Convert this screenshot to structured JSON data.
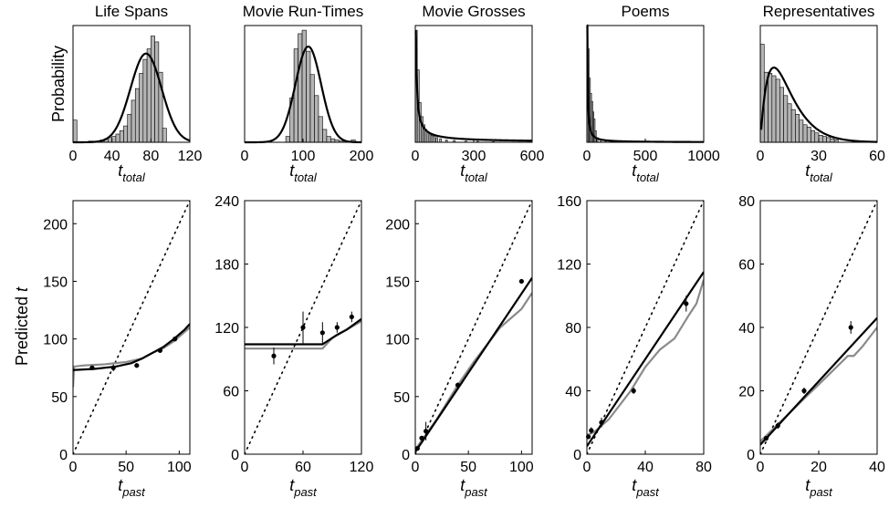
{
  "chart_data": [
    {
      "type": "bar",
      "title": "Life Spans",
      "xlabel": "t",
      "xlabel_sub": "total",
      "ylabel": "Probability",
      "xlim": [
        0,
        120
      ],
      "xticks": [
        0,
        40,
        80,
        120
      ],
      "bin_width": 4,
      "bins_x": [
        2,
        18,
        22,
        26,
        30,
        34,
        38,
        42,
        46,
        50,
        54,
        58,
        62,
        66,
        70,
        74,
        78,
        82,
        86,
        90,
        94
      ],
      "bins_p": [
        0.19,
        0.01,
        0.01,
        0.01,
        0.02,
        0.03,
        0.04,
        0.05,
        0.07,
        0.1,
        0.14,
        0.24,
        0.36,
        0.46,
        0.59,
        0.71,
        0.8,
        0.91,
        0.86,
        0.6,
        0.12
      ],
      "curve": {
        "kind": "normal",
        "mu": 75,
        "sigma": 16,
        "peak": 0.76
      }
    },
    {
      "type": "bar",
      "title": "Movie Run-Times",
      "xlabel": "t",
      "xlabel_sub": "total",
      "xlim": [
        0,
        200
      ],
      "xticks": [
        0,
        100,
        200
      ],
      "bin_width": 7,
      "bins_x": [
        74,
        81,
        88,
        95,
        102,
        109,
        116,
        123,
        130,
        137,
        144,
        151,
        158,
        165,
        172,
        186
      ],
      "bins_p": [
        0.05,
        0.38,
        0.8,
        0.93,
        0.96,
        0.78,
        0.58,
        0.4,
        0.22,
        0.11,
        0.05,
        0.03,
        0.02,
        0.01,
        0.01,
        0.02
      ],
      "curve": {
        "kind": "normal",
        "mu": 109,
        "sigma": 22,
        "peak": 0.82
      }
    },
    {
      "type": "bar",
      "title": "Movie Grosses",
      "xlabel": "t",
      "xlabel_sub": "total",
      "xlim": [
        0,
        600
      ],
      "xticks": [
        0,
        300,
        600
      ],
      "bin_width": 10,
      "bins_x": [
        5,
        15,
        25,
        35,
        45,
        55,
        65,
        75,
        85,
        95,
        110,
        130,
        160,
        200,
        260,
        320,
        400
      ],
      "bins_p": [
        0.96,
        0.62,
        0.34,
        0.22,
        0.15,
        0.11,
        0.09,
        0.07,
        0.06,
        0.05,
        0.04,
        0.03,
        0.02,
        0.015,
        0.01,
        0.008,
        0.005
      ],
      "curve": {
        "kind": "power",
        "gamma": 0.85,
        "peak": 0.95
      }
    },
    {
      "type": "bar",
      "title": "Poems",
      "xlabel": "t",
      "xlabel_sub": "total",
      "xlim": [
        0,
        1000
      ],
      "xticks": [
        0,
        500,
        1000
      ],
      "bin_width": 10,
      "bins_x": [
        5,
        15,
        25,
        35,
        45,
        55,
        65,
        75,
        90,
        120,
        160,
        220
      ],
      "bins_p": [
        0.99,
        0.8,
        0.55,
        0.42,
        0.35,
        0.26,
        0.2,
        0.1,
        0.04,
        0.02,
        0.01,
        0.005
      ],
      "curve": {
        "kind": "power",
        "gamma": 1.1,
        "peak": 1.0
      }
    },
    {
      "type": "bar",
      "title": "Representatives",
      "xlabel": "t",
      "xlabel_sub": "total",
      "xlim": [
        0,
        60
      ],
      "xticks": [
        0,
        30,
        60
      ],
      "bin_width": 2,
      "bins_x": [
        1,
        3,
        5,
        7,
        9,
        11,
        13,
        15,
        17,
        19,
        21,
        23,
        25,
        27,
        29,
        31,
        33,
        35,
        37,
        39
      ],
      "bins_p": [
        0.84,
        0.6,
        0.59,
        0.57,
        0.54,
        0.47,
        0.4,
        0.33,
        0.28,
        0.24,
        0.19,
        0.15,
        0.13,
        0.1,
        0.08,
        0.06,
        0.05,
        0.04,
        0.03,
        0.02
      ],
      "curve": {
        "kind": "erlang",
        "beta": 7,
        "peak": 0.64
      }
    },
    {
      "type": "line",
      "title": "",
      "xlabel": "t",
      "xlabel_sub": "past",
      "ylabel": "Predicted t",
      "xlim": [
        0,
        110
      ],
      "ylim": [
        0,
        220
      ],
      "xticks": [
        0,
        50,
        100
      ],
      "yticks": [
        0,
        50,
        100,
        150,
        200
      ],
      "series": [
        {
          "name": "",
          "style": "black",
          "x": [
            0,
            20,
            40,
            55,
            65,
            75,
            85,
            95,
            105,
            110
          ],
          "y": [
            73,
            74,
            76,
            79,
            83,
            88,
            93,
            100,
            108,
            113
          ]
        },
        {
          "name": "",
          "style": "gray",
          "x": [
            0,
            1,
            10,
            30,
            50,
            65,
            75,
            85,
            95,
            105,
            110
          ],
          "y": [
            58,
            76,
            77,
            78,
            80,
            83,
            88,
            92,
            98,
            106,
            110
          ]
        },
        {
          "name": "",
          "style": "dotted",
          "x": [
            0,
            110
          ],
          "y": [
            0,
            220
          ]
        }
      ],
      "points": {
        "x": [
          18,
          38,
          60,
          82,
          96
        ],
        "y": [
          75,
          75,
          77,
          90,
          100
        ],
        "err": [
          0,
          3,
          2,
          2,
          2
        ]
      }
    },
    {
      "type": "line",
      "title": "",
      "xlabel": "t",
      "xlabel_sub": "past",
      "xlim": [
        0,
        120
      ],
      "ylim": [
        0,
        240
      ],
      "xticks": [
        0,
        60,
        120
      ],
      "yticks": [
        0,
        60,
        120,
        180,
        240
      ],
      "series": [
        {
          "name": "",
          "style": "black",
          "x": [
            0,
            80,
            95,
            105,
            120
          ],
          "y": [
            104,
            104,
            113,
            118,
            128
          ]
        },
        {
          "name": "",
          "style": "gray",
          "x": [
            0,
            80,
            90,
            105,
            120
          ],
          "y": [
            100,
            100,
            110,
            118,
            126
          ]
        },
        {
          "name": "",
          "style": "dotted",
          "x": [
            0,
            120
          ],
          "y": [
            0,
            240
          ]
        }
      ],
      "points": {
        "x": [
          30,
          60,
          80,
          95,
          110
        ],
        "y": [
          93,
          120,
          115,
          120,
          130
        ],
        "err": [
          8,
          15,
          10,
          5,
          5
        ]
      }
    },
    {
      "type": "line",
      "title": "",
      "xlabel": "t",
      "xlabel_sub": "past",
      "xlim": [
        0,
        110
      ],
      "ylim": [
        0,
        220
      ],
      "xticks": [
        0,
        50,
        100
      ],
      "yticks": [
        0,
        50,
        100,
        150,
        200
      ],
      "series": [
        {
          "name": "",
          "style": "black",
          "x": [
            0,
            110
          ],
          "y": [
            2,
            153
          ]
        },
        {
          "name": "",
          "style": "gray",
          "x": [
            0,
            20,
            40,
            55,
            70,
            80,
            90,
            100,
            110
          ],
          "y": [
            4,
            30,
            60,
            80,
            98,
            110,
            118,
            126,
            140
          ]
        },
        {
          "name": "",
          "style": "dotted",
          "x": [
            0,
            110
          ],
          "y": [
            0,
            220
          ]
        }
      ],
      "points": {
        "x": [
          2,
          6,
          10,
          40,
          100
        ],
        "y": [
          5,
          14,
          20,
          60,
          150
        ],
        "err": [
          0,
          2,
          8,
          2,
          2
        ]
      }
    },
    {
      "type": "line",
      "title": "",
      "xlabel": "t",
      "xlabel_sub": "past",
      "xlim": [
        0,
        80
      ],
      "ylim": [
        0,
        160
      ],
      "xticks": [
        0,
        40,
        80
      ],
      "yticks": [
        0,
        40,
        80,
        120,
        160
      ],
      "series": [
        {
          "name": "",
          "style": "black",
          "x": [
            0,
            80
          ],
          "y": [
            5,
            115
          ]
        },
        {
          "name": "",
          "style": "gray",
          "x": [
            0,
            5,
            15,
            30,
            40,
            50,
            60,
            70,
            75,
            80
          ],
          "y": [
            12,
            14,
            22,
            40,
            55,
            66,
            73,
            88,
            95,
            110
          ]
        },
        {
          "name": "",
          "style": "dotted",
          "x": [
            0,
            80
          ],
          "y": [
            0,
            160
          ]
        }
      ],
      "points": {
        "x": [
          1,
          3,
          10,
          32,
          68
        ],
        "y": [
          11,
          15,
          20,
          40,
          95
        ],
        "err": [
          0,
          2,
          3,
          2,
          5
        ]
      }
    },
    {
      "type": "line",
      "title": "",
      "xlabel": "t",
      "xlabel_sub": "past",
      "xlim": [
        0,
        40
      ],
      "ylim": [
        0,
        80
      ],
      "xticks": [
        0,
        20,
        40
      ],
      "yticks": [
        0,
        20,
        40,
        60,
        80
      ],
      "series": [
        {
          "name": "",
          "style": "black",
          "x": [
            0,
            40
          ],
          "y": [
            3,
            43
          ]
        },
        {
          "name": "",
          "style": "gray",
          "x": [
            0,
            10,
            20,
            30,
            32,
            35,
            40
          ],
          "y": [
            4,
            13,
            22,
            31,
            31,
            34,
            40
          ]
        },
        {
          "name": "",
          "style": "dotted",
          "x": [
            0,
            40
          ],
          "y": [
            0,
            80
          ]
        }
      ],
      "points": {
        "x": [
          2,
          6,
          15,
          31
        ],
        "y": [
          5,
          9,
          20,
          40
        ],
        "err": [
          0,
          1,
          1,
          2
        ]
      }
    }
  ]
}
